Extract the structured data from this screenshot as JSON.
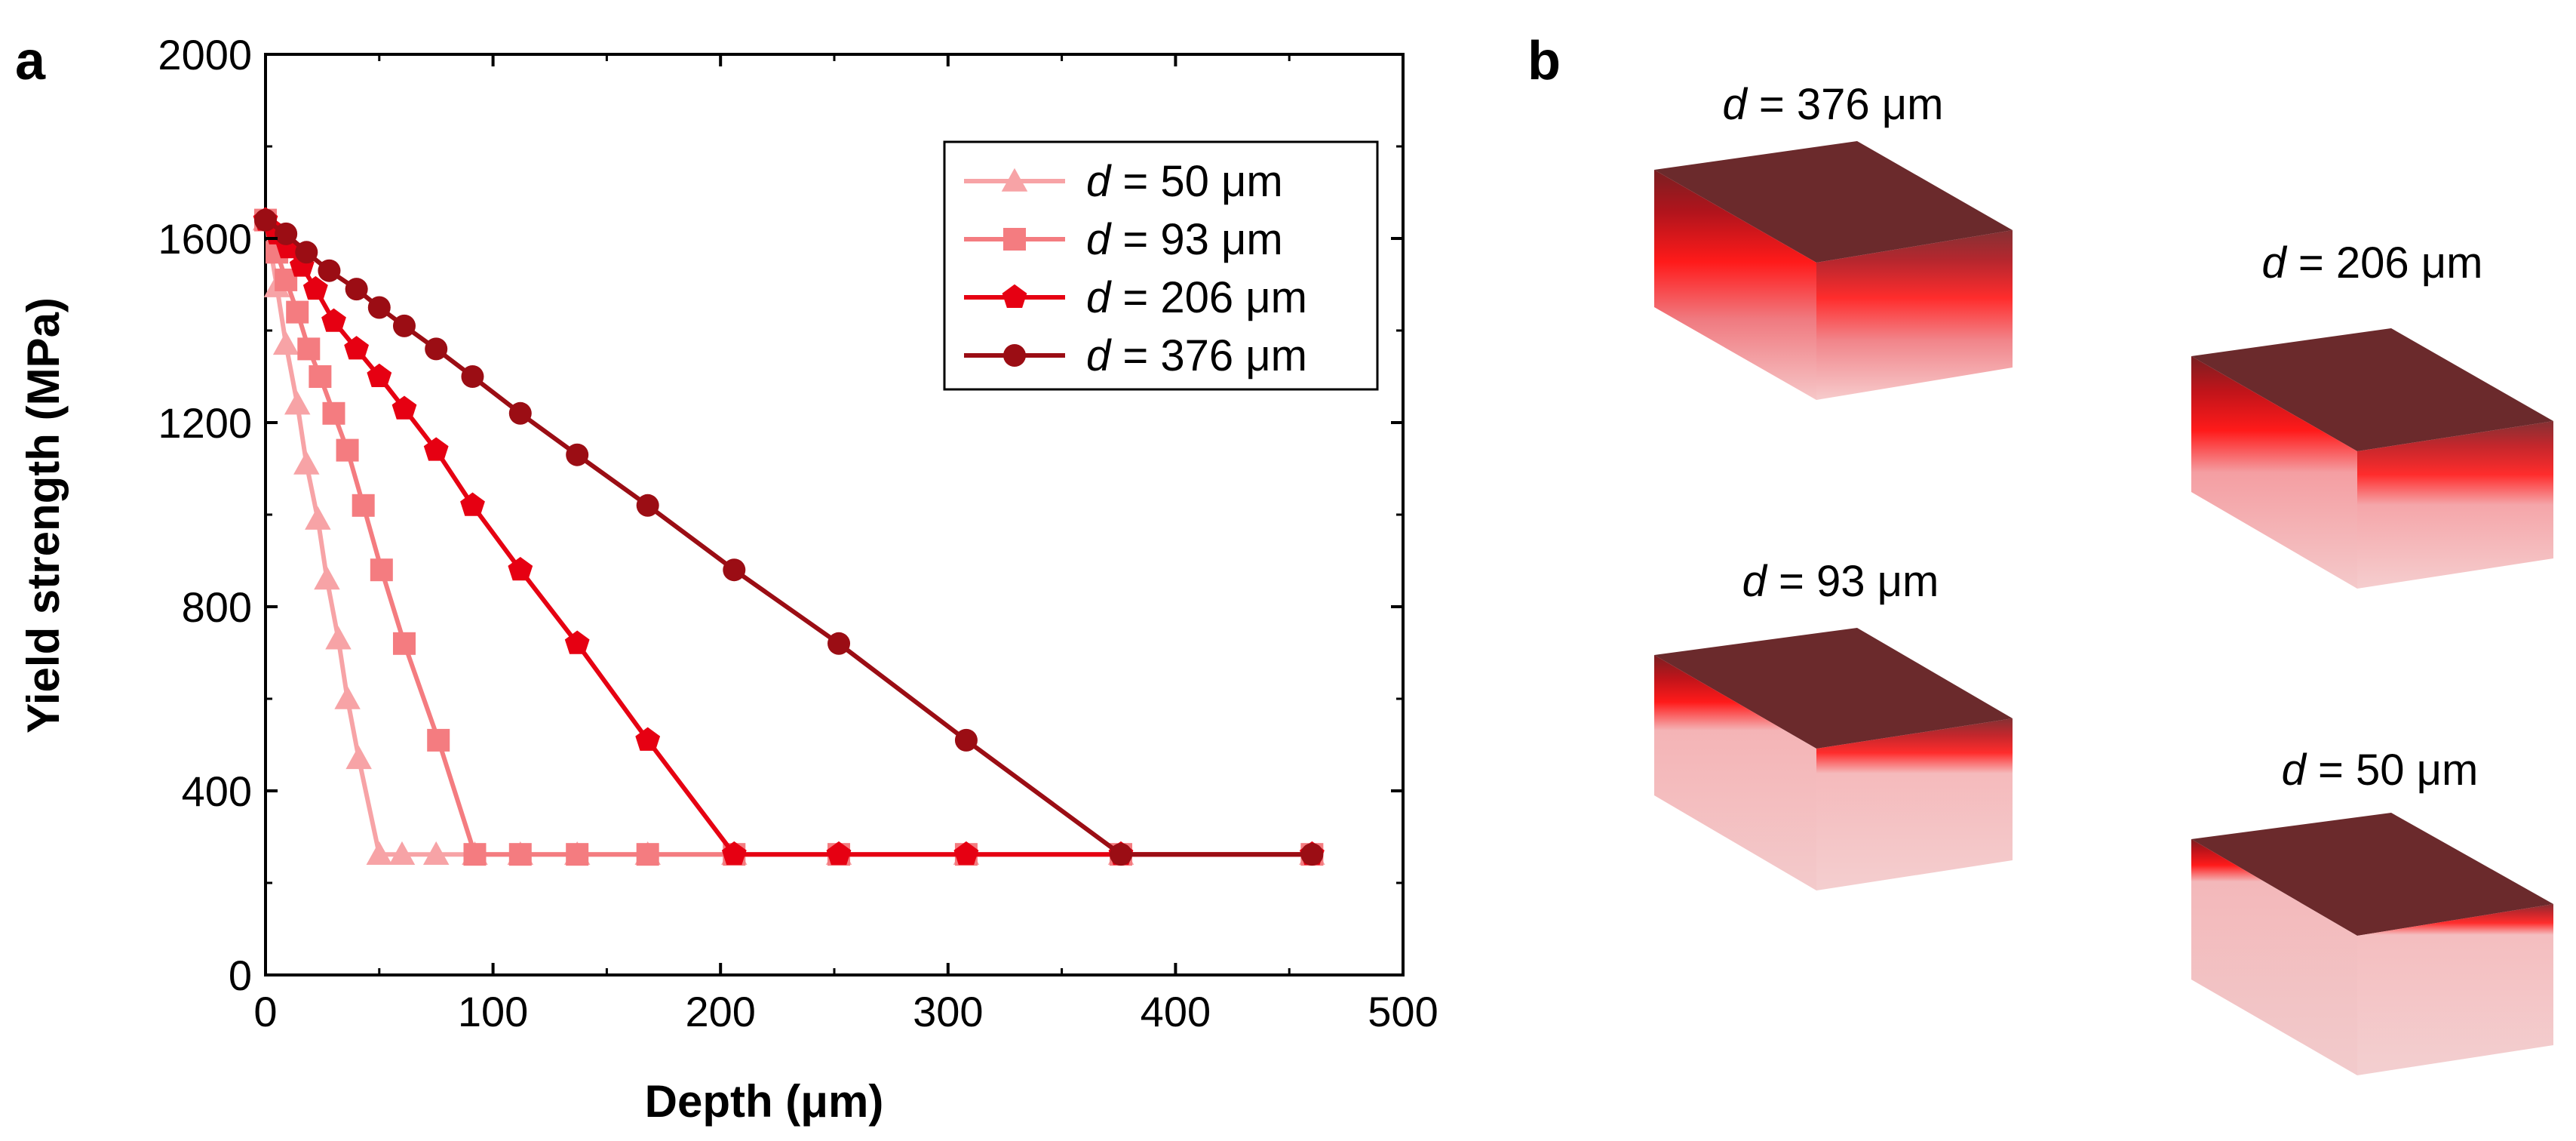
{
  "panel_a_label": "a",
  "panel_b_label": "b",
  "chart_data": {
    "type": "line",
    "title": "",
    "xlabel": "Depth (μm)",
    "ylabel": "Yield strength (MPa)",
    "xlim": [
      0,
      500
    ],
    "ylim": [
      0,
      2000
    ],
    "xticks": [
      0,
      100,
      200,
      300,
      400,
      500
    ],
    "yticks": [
      0,
      400,
      800,
      1200,
      1600,
      2000
    ],
    "legend_position": "top-right",
    "series": [
      {
        "name": "d = 50 μm",
        "legend_var": "d",
        "legend_rest": " = 50 μm",
        "color": "#f7a3a6",
        "marker": "triangle",
        "x": [
          0,
          5,
          9,
          14,
          18,
          23,
          27,
          32,
          36,
          41,
          50,
          60,
          75,
          92,
          112,
          137,
          168,
          206,
          252,
          308,
          376,
          460
        ],
        "y": [
          1640,
          1495,
          1370,
          1240,
          1110,
          990,
          860,
          730,
          600,
          470,
          262,
          262,
          262,
          262,
          262,
          262,
          262,
          262,
          262,
          262,
          262,
          262
        ]
      },
      {
        "name": "d = 93 μm",
        "legend_var": "d",
        "legend_rest": " = 93 μm",
        "color": "#f47c80",
        "marker": "square",
        "x": [
          0,
          5,
          9,
          14,
          19,
          24,
          30,
          36,
          43,
          51,
          61,
          76,
          92,
          112,
          137,
          168,
          206,
          252,
          308,
          376,
          460
        ],
        "y": [
          1640,
          1570,
          1510,
          1440,
          1360,
          1300,
          1220,
          1140,
          1020,
          880,
          720,
          510,
          262,
          262,
          262,
          262,
          262,
          262,
          262,
          262,
          262
        ]
      },
      {
        "name": "d = 206 μm",
        "legend_var": "d",
        "legend_rest": " = 206 μm",
        "color": "#e60012",
        "marker": "pentagon",
        "x": [
          0,
          5,
          10,
          16,
          22,
          30,
          40,
          50,
          61,
          75,
          91,
          112,
          137,
          168,
          206,
          252,
          308,
          376,
          460
        ],
        "y": [
          1640,
          1610,
          1580,
          1540,
          1490,
          1420,
          1360,
          1300,
          1230,
          1140,
          1020,
          880,
          720,
          510,
          262,
          262,
          262,
          262,
          262
        ]
      },
      {
        "name": "d = 376 μm",
        "legend_var": "d",
        "legend_rest": " = 376 μm",
        "color": "#9b0d14",
        "marker": "circle",
        "x": [
          0,
          9,
          18,
          28,
          40,
          50,
          61,
          75,
          91,
          112,
          137,
          168,
          206,
          252,
          308,
          376,
          460
        ],
        "y": [
          1640,
          1610,
          1570,
          1530,
          1490,
          1450,
          1410,
          1360,
          1300,
          1220,
          1130,
          1020,
          880,
          720,
          510,
          262,
          262
        ]
      }
    ]
  },
  "blocks": [
    {
      "var": "d",
      "rest": " = 376 μm",
      "surface_color": "#6b2a2c"
    },
    {
      "var": "d",
      "rest": " = 206 μm",
      "surface_color": "#6b2a2c"
    },
    {
      "var": "d",
      "rest": " = 93 μm",
      "surface_color": "#6b2a2c"
    },
    {
      "var": "d",
      "rest": " = 50 μm",
      "surface_color": "#6b2a2c"
    }
  ]
}
